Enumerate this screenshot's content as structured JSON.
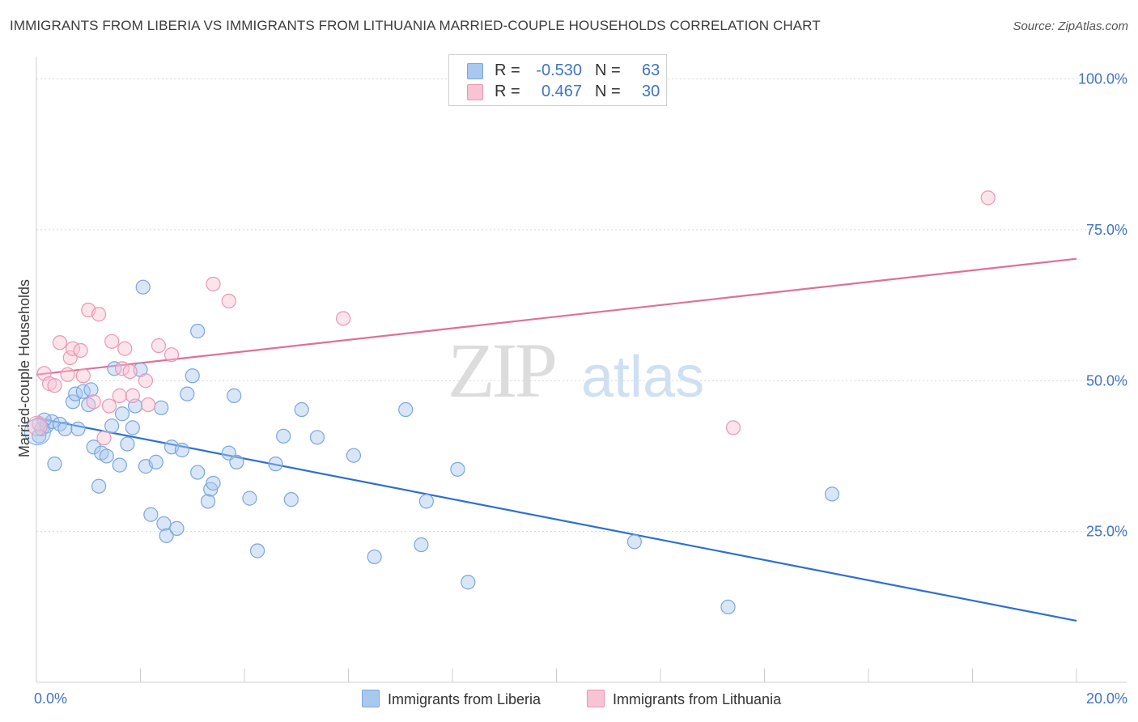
{
  "title": "IMMIGRANTS FROM LIBERIA VS IMMIGRANTS FROM LITHUANIA MARRIED-COUPLE HOUSEHOLDS CORRELATION CHART",
  "source": "Source: ZipAtlas.com",
  "watermark": {
    "zip": "ZIP",
    "atlas": "atlas"
  },
  "legend": {
    "rows": [
      {
        "r_label": "R =",
        "r_value": "-0.530",
        "n_label": "N =",
        "n_value": "63",
        "color": "#a9c8f0",
        "border": "#7aa6e0"
      },
      {
        "r_label": "R =",
        "r_value": "0.467",
        "n_label": "N =",
        "n_value": "30",
        "color": "#f8c3d3",
        "border": "#ec96b2"
      }
    ]
  },
  "bottom_legend": [
    {
      "label": "Immigrants from Liberia",
      "color": "#a9c8f0",
      "border": "#7aa6e0"
    },
    {
      "label": "Immigrants from Lithuania",
      "color": "#f8c3d3",
      "border": "#ec96b2"
    }
  ],
  "chart_data": {
    "type": "scatter",
    "title": "IMMIGRANTS FROM LIBERIA VS IMMIGRANTS FROM LITHUANIA MARRIED-COUPLE HOUSEHOLDS CORRELATION CHART",
    "xlabel": "",
    "ylabel": "Married-couple Households",
    "xlim": [
      0,
      20
    ],
    "ylim": [
      0,
      105
    ],
    "x_tick_labels": [
      {
        "value": 0,
        "label": "0.0%"
      },
      {
        "value": 20,
        "label": "20.0%"
      }
    ],
    "y_tick_labels": [
      {
        "value": 25,
        "label": "25.0%"
      },
      {
        "value": 50,
        "label": "50.0%"
      },
      {
        "value": 75,
        "label": "75.0%"
      },
      {
        "value": 100,
        "label": "100.0%"
      }
    ],
    "gridlines": [
      25,
      50,
      75,
      100
    ],
    "series": [
      {
        "name": "Immigrants from Liberia",
        "color": "#a9c8f0",
        "stroke": "#7aa6e0",
        "trend": {
          "x": [
            0,
            20
          ],
          "y": [
            43.8,
            10.2
          ],
          "color": "#2e6fd0"
        },
        "points": [
          [
            0.05,
            40.8
          ],
          [
            0.1,
            42.0
          ],
          [
            0.2,
            42.5
          ],
          [
            0.3,
            43.2
          ],
          [
            0.35,
            36.2
          ],
          [
            0.45,
            42.8
          ],
          [
            0.55,
            42.0
          ],
          [
            0.7,
            46.5
          ],
          [
            0.75,
            47.8
          ],
          [
            0.8,
            42.0
          ],
          [
            0.9,
            48.2
          ],
          [
            1.0,
            46.0
          ],
          [
            1.05,
            48.5
          ],
          [
            1.1,
            39.0
          ],
          [
            1.2,
            32.5
          ],
          [
            1.25,
            38.0
          ],
          [
            1.35,
            37.5
          ],
          [
            1.45,
            42.5
          ],
          [
            1.5,
            52.0
          ],
          [
            1.6,
            36.0
          ],
          [
            1.65,
            44.5
          ],
          [
            1.75,
            39.5
          ],
          [
            1.85,
            42.2
          ],
          [
            1.9,
            45.8
          ],
          [
            2.0,
            51.8
          ],
          [
            2.05,
            65.5
          ],
          [
            2.1,
            35.8
          ],
          [
            2.2,
            27.8
          ],
          [
            2.3,
            36.5
          ],
          [
            2.4,
            45.5
          ],
          [
            2.45,
            26.3
          ],
          [
            2.5,
            24.3
          ],
          [
            2.6,
            39.0
          ],
          [
            2.7,
            25.5
          ],
          [
            2.8,
            38.5
          ],
          [
            2.9,
            47.8
          ],
          [
            3.0,
            50.8
          ],
          [
            3.1,
            58.2
          ],
          [
            3.1,
            34.8
          ],
          [
            3.3,
            30.0
          ],
          [
            3.35,
            32.0
          ],
          [
            3.4,
            33.0
          ],
          [
            3.7,
            38.0
          ],
          [
            3.8,
            47.5
          ],
          [
            3.85,
            36.5
          ],
          [
            4.1,
            30.5
          ],
          [
            4.25,
            21.8
          ],
          [
            4.6,
            36.2
          ],
          [
            4.75,
            40.8
          ],
          [
            4.9,
            30.3
          ],
          [
            5.1,
            45.2
          ],
          [
            5.4,
            40.6
          ],
          [
            6.1,
            37.6
          ],
          [
            6.5,
            20.8
          ],
          [
            7.1,
            45.2
          ],
          [
            7.4,
            22.8
          ],
          [
            7.5,
            30.0
          ],
          [
            8.1,
            35.3
          ],
          [
            8.3,
            16.6
          ],
          [
            11.5,
            23.3
          ],
          [
            13.3,
            12.5
          ],
          [
            15.3,
            31.2
          ],
          [
            0.15,
            43.5
          ]
        ]
      },
      {
        "name": "Immigrants from Lithuania",
        "color": "#f8c3d3",
        "stroke": "#ec96b2",
        "trend": {
          "x": [
            0,
            20
          ],
          "y": [
            51.0,
            70.2
          ],
          "color": "#e06f98"
        },
        "points": [
          [
            0.05,
            42.8
          ],
          [
            0.15,
            51.2
          ],
          [
            0.25,
            49.5
          ],
          [
            0.35,
            49.2
          ],
          [
            0.45,
            56.3
          ],
          [
            0.6,
            51.0
          ],
          [
            0.65,
            53.8
          ],
          [
            0.7,
            55.3
          ],
          [
            0.85,
            55.0
          ],
          [
            0.9,
            50.8
          ],
          [
            1.0,
            61.7
          ],
          [
            1.1,
            46.5
          ],
          [
            1.2,
            61.0
          ],
          [
            1.3,
            40.5
          ],
          [
            1.4,
            45.8
          ],
          [
            1.45,
            56.5
          ],
          [
            1.6,
            47.5
          ],
          [
            1.65,
            52.0
          ],
          [
            1.7,
            55.3
          ],
          [
            1.8,
            51.5
          ],
          [
            1.85,
            47.5
          ],
          [
            2.1,
            50.0
          ],
          [
            2.15,
            46.0
          ],
          [
            2.35,
            55.8
          ],
          [
            2.6,
            54.3
          ],
          [
            3.4,
            66.0
          ],
          [
            3.7,
            63.2
          ],
          [
            5.9,
            60.3
          ],
          [
            13.4,
            42.2
          ],
          [
            18.3,
            80.3
          ]
        ]
      }
    ]
  }
}
